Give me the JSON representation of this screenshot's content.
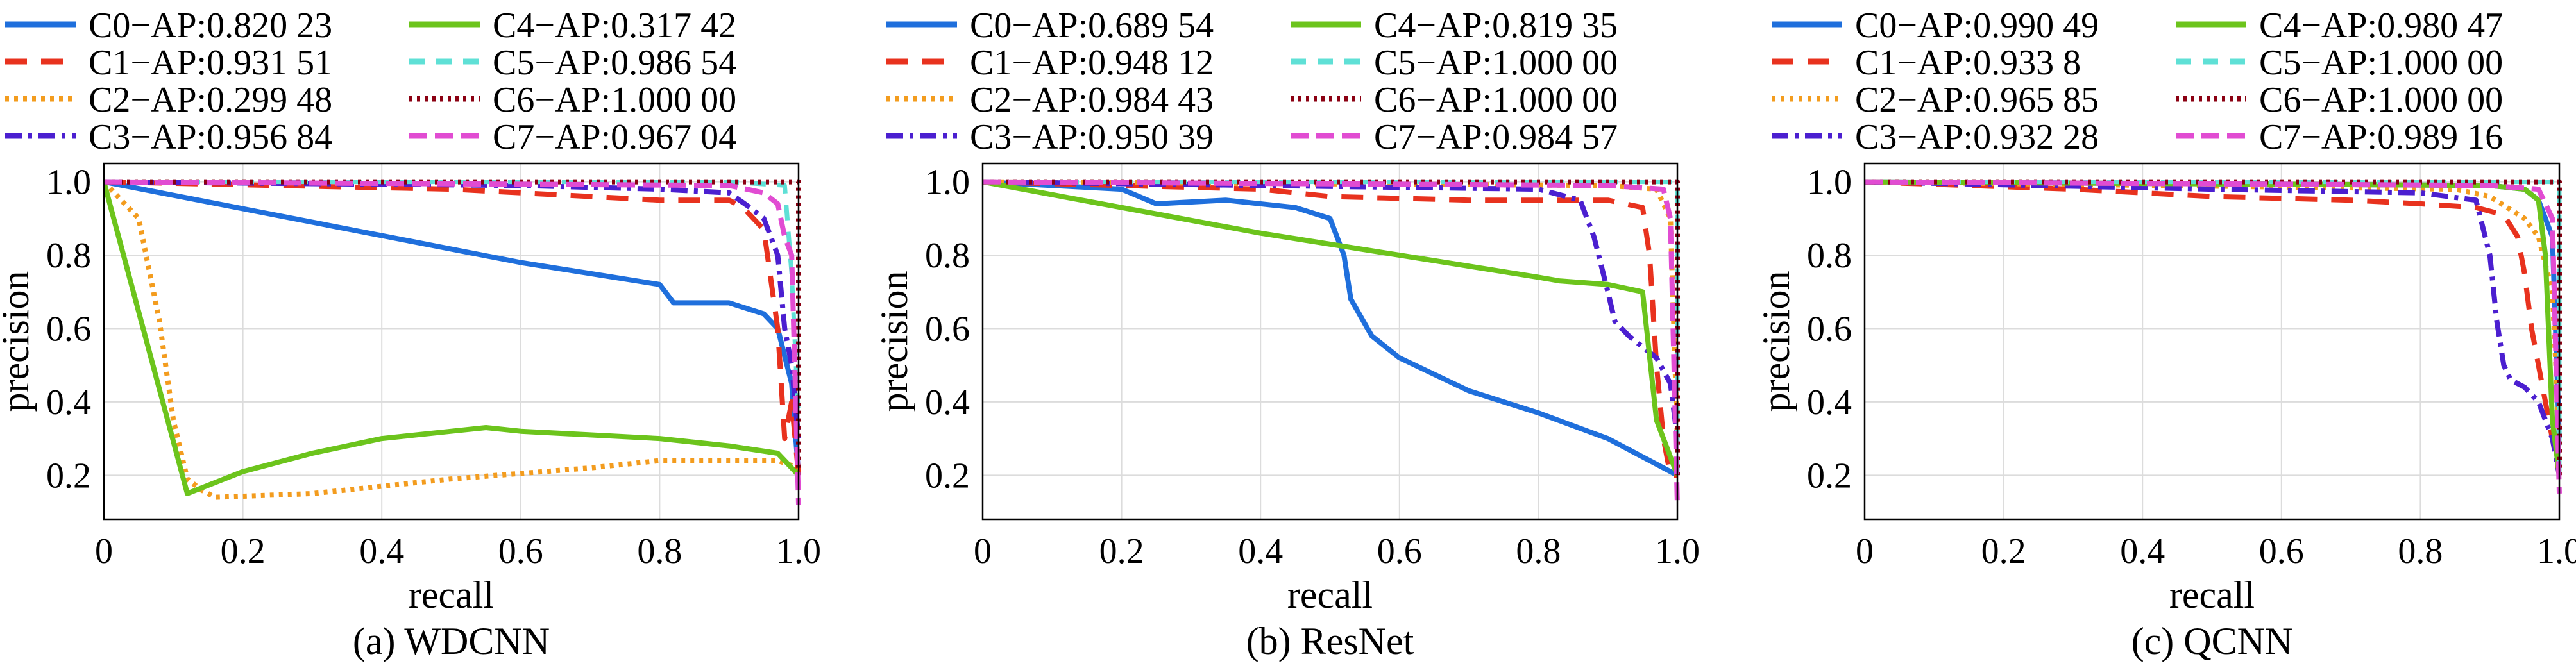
{
  "colors": {
    "C0": "#1f6fdc",
    "C1": "#e8321e",
    "C2": "#f39c1e",
    "C3": "#4b1fd0",
    "C4": "#6cc41c",
    "C5": "#5fe0d6",
    "C6": "#8b0012",
    "C7": "#e14cd2"
  },
  "chart_data": [
    {
      "type": "line",
      "caption": "(a) WDCNN",
      "xlabel": "recall",
      "ylabel": "precision",
      "xlim": [
        0,
        1
      ],
      "ylim": [
        0.08,
        1.05
      ],
      "xticks": [
        "0",
        "0.2",
        "0.4",
        "0.6",
        "0.8",
        "1.0"
      ],
      "yticks": [
        "0.2",
        "0.4",
        "0.6",
        "0.8",
        "1.0"
      ],
      "grid": true,
      "legend": "above-plot",
      "series": [
        {
          "name": "C0−AP:0.820 23",
          "x": [
            0,
            0.6,
            0.8,
            0.82,
            0.9,
            0.95,
            0.97,
            0.99,
            1.0
          ],
          "y": [
            1.0,
            0.78,
            0.72,
            0.67,
            0.67,
            0.64,
            0.6,
            0.45,
            0.2
          ]
        },
        {
          "name": "C1−AP:0.931 51",
          "x": [
            0,
            0.5,
            0.6,
            0.7,
            0.8,
            0.85,
            0.9,
            0.92,
            0.95,
            0.97,
            0.98,
            0.99,
            1.0
          ],
          "y": [
            1.0,
            0.98,
            0.97,
            0.96,
            0.95,
            0.95,
            0.95,
            0.93,
            0.87,
            0.6,
            0.3,
            0.4,
            0.2
          ]
        },
        {
          "name": "C2−AP:0.299 48",
          "x": [
            0,
            0.05,
            0.08,
            0.1,
            0.12,
            0.14,
            0.16,
            0.3,
            0.5,
            0.7,
            0.8,
            0.9,
            0.97,
            1.0
          ],
          "y": [
            1.0,
            0.9,
            0.62,
            0.35,
            0.19,
            0.16,
            0.14,
            0.15,
            0.19,
            0.22,
            0.24,
            0.24,
            0.24,
            0.22
          ]
        },
        {
          "name": "C3−AP:0.956 84",
          "x": [
            0,
            0.6,
            0.8,
            0.9,
            0.93,
            0.95,
            0.97,
            0.98,
            0.99,
            1.0
          ],
          "y": [
            1.0,
            0.99,
            0.98,
            0.97,
            0.93,
            0.9,
            0.8,
            0.6,
            0.5,
            0.3
          ]
        },
        {
          "name": "C4−AP:0.317 42",
          "x": [
            0,
            0.12,
            0.2,
            0.3,
            0.4,
            0.5,
            0.55,
            0.6,
            0.7,
            0.8,
            0.9,
            0.97,
            1.0
          ],
          "y": [
            1.0,
            0.15,
            0.21,
            0.26,
            0.3,
            0.32,
            0.33,
            0.32,
            0.31,
            0.3,
            0.28,
            0.26,
            0.2
          ]
        },
        {
          "name": "C5−AP:0.986 54",
          "x": [
            0,
            0.9,
            0.98,
            0.99,
            1.0
          ],
          "y": [
            1.0,
            1.0,
            0.99,
            0.75,
            0.35
          ]
        },
        {
          "name": "C6−AP:1.000 00",
          "x": [
            0,
            1.0,
            1.0
          ],
          "y": [
            1.0,
            1.0,
            0.2
          ]
        },
        {
          "name": "C7−AP:0.967 04",
          "x": [
            0,
            0.9,
            0.95,
            0.97,
            0.98,
            0.99,
            1.0
          ],
          "y": [
            1.0,
            0.99,
            0.97,
            0.94,
            0.85,
            0.8,
            0.12
          ]
        }
      ]
    },
    {
      "type": "line",
      "caption": "(b) ResNet",
      "xlabel": "recall",
      "ylabel": "precision",
      "xlim": [
        0,
        1
      ],
      "ylim": [
        0.08,
        1.05
      ],
      "xticks": [
        "0",
        "0.2",
        "0.4",
        "0.6",
        "0.8",
        "1.0"
      ],
      "yticks": [
        "0.2",
        "0.4",
        "0.6",
        "0.8",
        "1.0"
      ],
      "grid": true,
      "legend": "above-plot",
      "series": [
        {
          "name": "C0−AP:0.689 54",
          "x": [
            0,
            0.2,
            0.25,
            0.35,
            0.45,
            0.5,
            0.52,
            0.53,
            0.56,
            0.6,
            0.7,
            0.8,
            0.9,
            1.0
          ],
          "y": [
            1.0,
            0.98,
            0.94,
            0.95,
            0.93,
            0.9,
            0.8,
            0.68,
            0.58,
            0.52,
            0.43,
            0.37,
            0.3,
            0.2
          ]
        },
        {
          "name": "C1−AP:0.948 12",
          "x": [
            0,
            0.4,
            0.5,
            0.7,
            0.8,
            0.9,
            0.95,
            0.96,
            0.97,
            0.98,
            0.99,
            1.0
          ],
          "y": [
            1.0,
            0.98,
            0.96,
            0.95,
            0.95,
            0.95,
            0.93,
            0.8,
            0.5,
            0.3,
            0.2,
            0.2
          ]
        },
        {
          "name": "C2−AP:0.984 43",
          "x": [
            0,
            0.9,
            0.97,
            0.99,
            1.0
          ],
          "y": [
            1.0,
            0.99,
            0.98,
            0.9,
            0.3
          ]
        },
        {
          "name": "C3−AP:0.950 39",
          "x": [
            0,
            0.8,
            0.86,
            0.88,
            0.9,
            0.91,
            0.93,
            0.95,
            0.97,
            0.99,
            1.0
          ],
          "y": [
            1.0,
            0.98,
            0.95,
            0.85,
            0.7,
            0.62,
            0.58,
            0.55,
            0.52,
            0.45,
            0.3
          ]
        },
        {
          "name": "C4−AP:0.819 35",
          "x": [
            0,
            0.2,
            0.4,
            0.6,
            0.8,
            0.83,
            0.9,
            0.95,
            0.97,
            0.98,
            1.0
          ],
          "y": [
            1.0,
            0.93,
            0.86,
            0.8,
            0.74,
            0.73,
            0.72,
            0.7,
            0.35,
            0.3,
            0.2
          ]
        },
        {
          "name": "C5−AP:1.000 00",
          "x": [
            0,
            1.0,
            1.0
          ],
          "y": [
            1.0,
            1.0,
            0.2
          ]
        },
        {
          "name": "C6−AP:1.000 00",
          "x": [
            0,
            1.0,
            1.0
          ],
          "y": [
            1.0,
            1.0,
            0.2
          ]
        },
        {
          "name": "C7−AP:0.984 57",
          "x": [
            0,
            0.9,
            0.98,
            0.99,
            1.0
          ],
          "y": [
            1.0,
            0.99,
            0.98,
            0.9,
            0.12
          ]
        }
      ]
    },
    {
      "type": "line",
      "caption": "(c) QCNN",
      "xlabel": "recall",
      "ylabel": "precision",
      "xlim": [
        0,
        1
      ],
      "ylim": [
        0.08,
        1.05
      ],
      "xticks": [
        "0",
        "0.2",
        "0.4",
        "0.6",
        "0.8",
        "1.0"
      ],
      "yticks": [
        "0.2",
        "0.4",
        "0.6",
        "0.8",
        "1.0"
      ],
      "grid": true,
      "legend": "above-plot",
      "series": [
        {
          "name": "C0−AP:0.990 49",
          "x": [
            0,
            0.9,
            0.95,
            0.97,
            0.99,
            1.0
          ],
          "y": [
            1.0,
            0.99,
            0.98,
            0.95,
            0.85,
            0.3
          ]
        },
        {
          "name": "C1−AP:0.933 8",
          "x": [
            0,
            0.3,
            0.5,
            0.7,
            0.8,
            0.88,
            0.92,
            0.94,
            0.95,
            0.96,
            0.97,
            0.98,
            1.0
          ],
          "y": [
            1.0,
            0.98,
            0.96,
            0.95,
            0.94,
            0.93,
            0.91,
            0.85,
            0.75,
            0.6,
            0.5,
            0.4,
            0.2
          ]
        },
        {
          "name": "C2−AP:0.965 85",
          "x": [
            0,
            0.85,
            0.9,
            0.95,
            0.97,
            0.99,
            1.0
          ],
          "y": [
            1.0,
            0.98,
            0.96,
            0.9,
            0.85,
            0.7,
            0.3
          ]
        },
        {
          "name": "C3−AP:0.932 28",
          "x": [
            0,
            0.5,
            0.8,
            0.88,
            0.9,
            0.91,
            0.92,
            0.93,
            0.95,
            0.97,
            0.99,
            1.0
          ],
          "y": [
            1.0,
            0.98,
            0.97,
            0.95,
            0.8,
            0.62,
            0.5,
            0.46,
            0.44,
            0.4,
            0.3,
            0.2
          ]
        },
        {
          "name": "C4−AP:0.980 47",
          "x": [
            0,
            0.9,
            0.95,
            0.97,
            0.98,
            0.99,
            1.0
          ],
          "y": [
            1.0,
            0.99,
            0.98,
            0.95,
            0.8,
            0.35,
            0.2
          ]
        },
        {
          "name": "C5−AP:1.000 00",
          "x": [
            0,
            1.0,
            1.0
          ],
          "y": [
            1.0,
            1.0,
            0.2
          ]
        },
        {
          "name": "C6−AP:1.000 00",
          "x": [
            0,
            1.0,
            1.0
          ],
          "y": [
            1.0,
            1.0,
            0.2
          ]
        },
        {
          "name": "C7−AP:0.989 16",
          "x": [
            0,
            0.9,
            0.97,
            0.99,
            1.0
          ],
          "y": [
            1.0,
            0.99,
            0.98,
            0.9,
            0.15
          ]
        }
      ]
    }
  ]
}
